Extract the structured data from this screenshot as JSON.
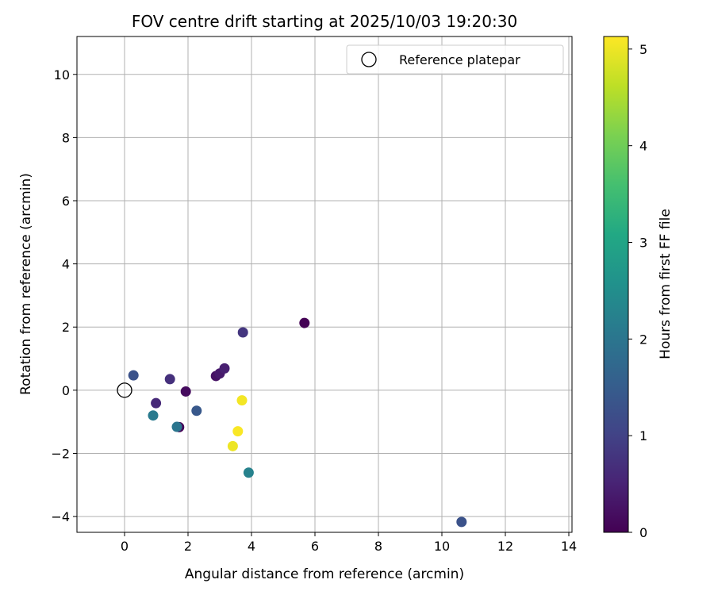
{
  "chart_data": {
    "type": "scatter",
    "title": "FOV centre drift starting at 2025/10/03 19:20:30",
    "xlabel": "Angular distance from reference (arcmin)",
    "ylabel": "Rotation from reference (arcmin)",
    "xlim": [
      -1.5,
      14.1
    ],
    "ylim": [
      -4.5,
      11.2
    ],
    "xticks": [
      0,
      2,
      4,
      6,
      8,
      10,
      12,
      14
    ],
    "yticks": [
      -4,
      -2,
      0,
      2,
      4,
      6,
      8,
      10
    ],
    "xtick_labels": [
      "0",
      "2",
      "4",
      "6",
      "8",
      "10",
      "12",
      "14"
    ],
    "ytick_labels": [
      "−4",
      "−2",
      "0",
      "2",
      "4",
      "6",
      "8",
      "10"
    ],
    "grid": true,
    "legend": {
      "position": "top-right",
      "entries": [
        "Reference platepar"
      ]
    },
    "reference_point": {
      "x": 0,
      "y": 0,
      "label": "Reference platepar"
    },
    "colorbar": {
      "label": "Hours from first FF file",
      "min": 0,
      "max": 5.13,
      "ticks": [
        0,
        1,
        2,
        3,
        4,
        5
      ],
      "tick_labels": [
        "0",
        "1",
        "2",
        "3",
        "4",
        "5"
      ],
      "colormap": "viridis"
    },
    "points": [
      {
        "x": 5.67,
        "y": 2.13,
        "hours": 0.02
      },
      {
        "x": 1.72,
        "y": -1.17,
        "hours": 0.06
      },
      {
        "x": 1.93,
        "y": -0.04,
        "hours": 0.15
      },
      {
        "x": 2.88,
        "y": 0.45,
        "hours": 0.25
      },
      {
        "x": 3.0,
        "y": 0.53,
        "hours": 0.35
      },
      {
        "x": 3.15,
        "y": 0.69,
        "hours": 0.45
      },
      {
        "x": 0.99,
        "y": -0.41,
        "hours": 0.6
      },
      {
        "x": 1.43,
        "y": 0.35,
        "hours": 0.7
      },
      {
        "x": 3.73,
        "y": 1.83,
        "hours": 0.8
      },
      {
        "x": 0.28,
        "y": 0.47,
        "hours": 1.3
      },
      {
        "x": 2.27,
        "y": -0.65,
        "hours": 1.4
      },
      {
        "x": 10.62,
        "y": -4.17,
        "hours": 1.3
      },
      {
        "x": 1.65,
        "y": -1.16,
        "hours": 2.0
      },
      {
        "x": 0.9,
        "y": -0.8,
        "hours": 2.1
      },
      {
        "x": 3.91,
        "y": -2.61,
        "hours": 2.25
      },
      {
        "x": 3.7,
        "y": -0.32,
        "hours": 5.05
      },
      {
        "x": 3.57,
        "y": -1.3,
        "hours": 5.1
      },
      {
        "x": 3.41,
        "y": -1.77,
        "hours": 5.0
      }
    ]
  }
}
